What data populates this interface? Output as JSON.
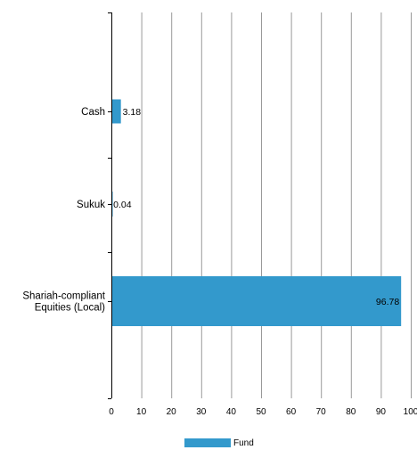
{
  "chart_data": {
    "type": "bar",
    "orientation": "horizontal",
    "categories": [
      "Cash",
      "Sukuk",
      "Shariah-compliant Equities (Local)"
    ],
    "category_label_lines": [
      [
        "Cash"
      ],
      [
        "Sukuk"
      ],
      [
        "Shariah-compliant",
        "Equities (Local)"
      ]
    ],
    "series": [
      {
        "name": "Fund",
        "values": [
          3.18,
          0.04,
          96.78
        ],
        "data_labels": [
          "3.18",
          "0.04",
          "96.78"
        ]
      }
    ],
    "xlim": [
      0,
      100
    ],
    "x_ticks": [
      0,
      10,
      20,
      30,
      40,
      50,
      60,
      70,
      80,
      90,
      100
    ],
    "x_tick_labels": [
      "0",
      "10",
      "20",
      "30",
      "40",
      "50",
      "60",
      "70",
      "80",
      "90",
      "100"
    ],
    "grid": true,
    "legend_position": "bottom",
    "colors": {
      "bar": "#3399cc",
      "grid": "#999999",
      "axis": "#000000"
    }
  }
}
